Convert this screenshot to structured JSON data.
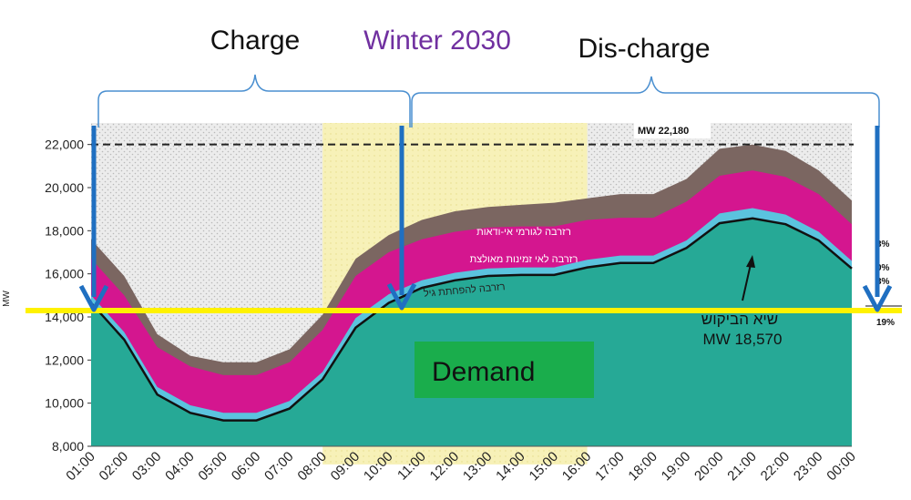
{
  "chart_data": {
    "type": "area",
    "title": "Winter 2030",
    "ylabel": "MW",
    "ylim": [
      8000,
      23000
    ],
    "yticks": [
      8000,
      10000,
      12000,
      14000,
      16000,
      18000,
      20000,
      22000
    ],
    "ytick_labels": [
      "8,000",
      "10,000",
      "12,000",
      "14,000",
      "16,000",
      "18,000",
      "20,000",
      "22,000"
    ],
    "categories": [
      "01:00",
      "02:00",
      "03:00",
      "04:00",
      "05:00",
      "06:00",
      "07:00",
      "08:00",
      "09:00",
      "10:00",
      "11:00",
      "12:00",
      "13:00",
      "14:00",
      "15:00",
      "16:00",
      "17:00",
      "18:00",
      "19:00",
      "20:00",
      "21:00",
      "22:00",
      "23:00",
      "00:00"
    ],
    "series": [
      {
        "name": "",
        "color": "#26a996",
        "values": [
          14650,
          12950,
          10400,
          9550,
          9200,
          9200,
          9750,
          11100,
          13500,
          14650,
          15350,
          15700,
          15900,
          15950,
          15950,
          16300,
          16500,
          16500,
          17200,
          18350,
          18570,
          18300,
          17550,
          16250
        ]
      },
      {
        "name": "רזרבה להפחתת גיל",
        "color": "#5bc3de",
        "values": [
          15000,
          13300,
          10750,
          9900,
          9550,
          9550,
          10100,
          11450,
          13950,
          15050,
          15700,
          16050,
          16250,
          16300,
          16300,
          16650,
          16850,
          16850,
          17550,
          18800,
          19050,
          18750,
          17950,
          16600
        ]
      },
      {
        "name": "רזרבה לאי זמינות מאולצת",
        "color": "#d4168f",
        "values": [
          16700,
          15000,
          12600,
          11700,
          11300,
          11300,
          11900,
          13400,
          15900,
          17000,
          17600,
          17950,
          18150,
          18200,
          18200,
          18500,
          18600,
          18600,
          19350,
          20550,
          20800,
          20500,
          19700,
          18300
        ]
      },
      {
        "name": "רזרבה לגורמי אי-ודאות",
        "color": "#7b6661",
        "values": [
          17600,
          15900,
          13200,
          12200,
          11900,
          11900,
          12500,
          14100,
          16700,
          17800,
          18500,
          18900,
          19100,
          19200,
          19300,
          19500,
          19700,
          19700,
          20400,
          21800,
          22000,
          21700,
          20800,
          19400
        ]
      }
    ],
    "reference_line": {
      "value": 22180,
      "label": "MW 22,180",
      "style": "dashed",
      "color": "#222222"
    },
    "highlight_line": {
      "value": 14700,
      "color": "#fff200"
    },
    "highlight_region": {
      "from": "08:00",
      "to": "16:00",
      "color": "#fbf6c1"
    },
    "annotations": {
      "charge": "Charge",
      "discharge": "Dis-charge",
      "demand": "Demand",
      "peak_label_he": "שיא הביקוש",
      "peak_value": "MW 18,570",
      "right_labels": [
        "3%",
        "0%",
        "3%",
        "19%"
      ]
    },
    "grid": false,
    "legend": "inline"
  }
}
